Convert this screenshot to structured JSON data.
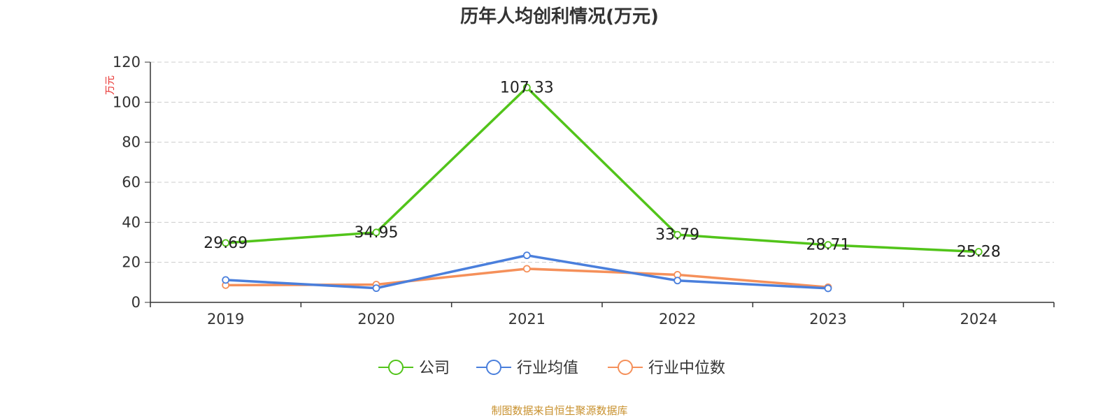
{
  "chart_data": {
    "type": "line",
    "title": "历年人均创利情况(万元)",
    "ylabel": "万元",
    "xlabel": "",
    "categories": [
      "2019",
      "2020",
      "2021",
      "2022",
      "2023",
      "2024"
    ],
    "ylim": [
      0,
      120
    ],
    "yticks": [
      0,
      20,
      40,
      60,
      80,
      100,
      120
    ],
    "grid": true,
    "legend_position": "bottom-center",
    "series": [
      {
        "name": "公司",
        "color": "#52c41a",
        "values": [
          29.69,
          34.95,
          107.33,
          33.79,
          28.71,
          25.28
        ],
        "labels": [
          "29.69",
          "34.95",
          "107.33",
          "33.79",
          "28.71",
          "25.28"
        ]
      },
      {
        "name": "行业均值",
        "color": "#4a7fdc",
        "values": [
          11.2,
          7.1,
          23.5,
          10.9,
          7.0,
          null
        ],
        "labels": []
      },
      {
        "name": "行业中位数",
        "color": "#f5905a",
        "values": [
          8.6,
          8.9,
          16.8,
          13.8,
          7.6,
          null
        ],
        "labels": []
      }
    ]
  },
  "footer": {
    "source": "制图数据来自恒生聚源数据库",
    "source_color": "#c8912e"
  }
}
